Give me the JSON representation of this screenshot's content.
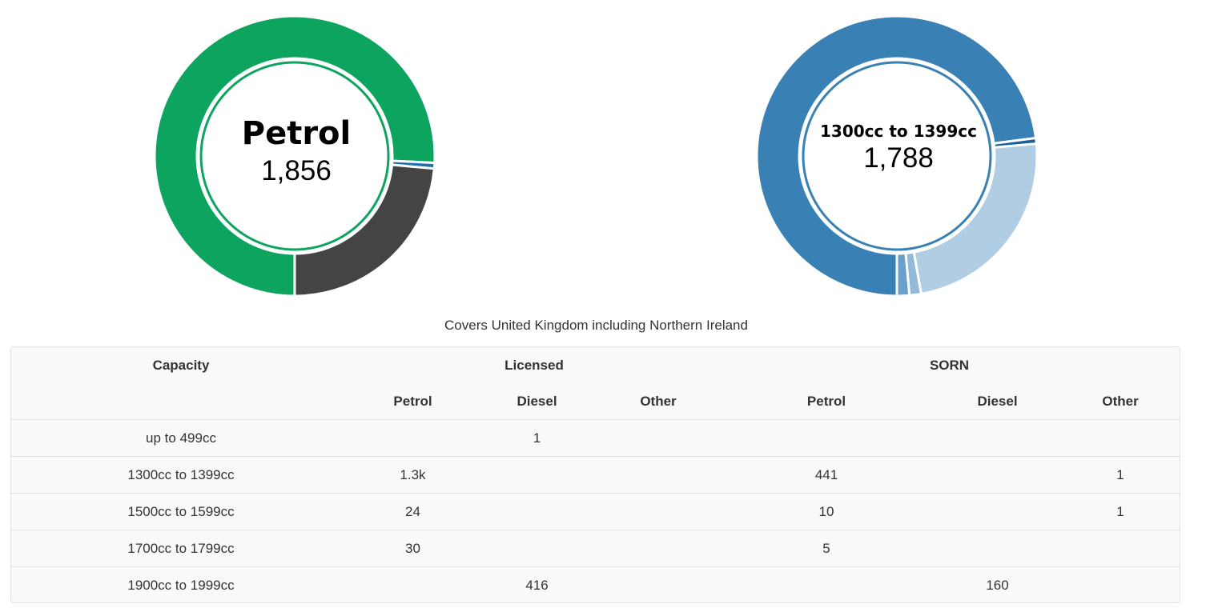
{
  "chart_data": [
    {
      "type": "pie",
      "center_label": "Petrol",
      "center_value": "1,856",
      "slices": [
        {
          "value": 1856,
          "color": "#0ca45f"
        },
        {
          "value": 16,
          "color": "#2070b0"
        },
        {
          "value": 577,
          "color": "#444444"
        }
      ]
    },
    {
      "type": "pie",
      "center_label": "1300cc to 1399cc",
      "center_value": "1,788",
      "slices": [
        {
          "value": 1788,
          "color": "#3980b5"
        },
        {
          "value": 16,
          "color": "#1a5f99"
        },
        {
          "value": 579,
          "color": "#b0cde3"
        },
        {
          "value": 33,
          "color": "#92b9d8"
        },
        {
          "value": 35,
          "color": "#6a9fcb"
        }
      ]
    }
  ],
  "caption": "Covers United Kingdom including Northern Ireland",
  "table": {
    "headers": {
      "capacity": "Capacity",
      "licensed": "Licensed",
      "sorn": "SORN",
      "petrol": "Petrol",
      "diesel": "Diesel",
      "other": "Other"
    },
    "rows": [
      [
        "up to 499cc",
        "",
        "1",
        "",
        "",
        "",
        ""
      ],
      [
        "1300cc to 1399cc",
        "1.3k",
        "",
        "",
        "441",
        "",
        "1"
      ],
      [
        "1500cc to 1599cc",
        "24",
        "",
        "",
        "10",
        "",
        "1"
      ],
      [
        "1700cc to 1799cc",
        "30",
        "",
        "",
        "5",
        "",
        ""
      ],
      [
        "1900cc to 1999cc",
        "",
        "416",
        "",
        "",
        "160",
        ""
      ]
    ]
  }
}
